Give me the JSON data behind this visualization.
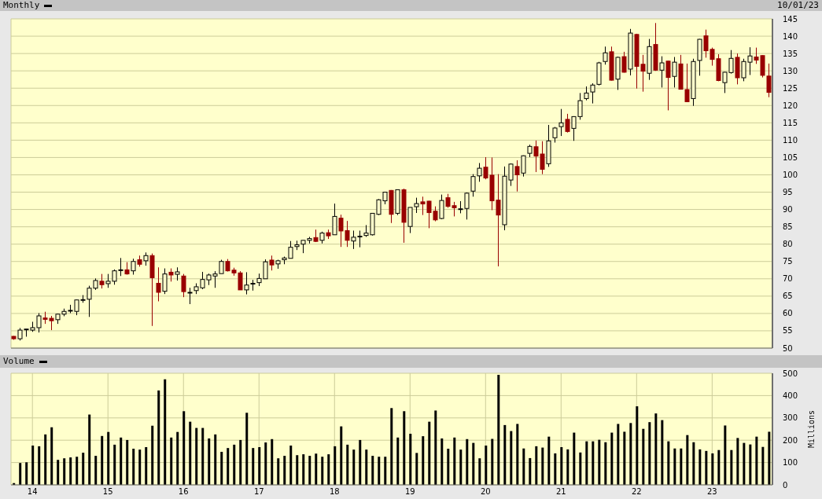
{
  "chart_data": [
    {
      "type": "candlestick",
      "title": "Monthly",
      "annotations": [
        "10/01/23"
      ],
      "x": [
        "2013-10",
        "2013-11",
        "2013-12",
        "2014-01",
        "2014-02",
        "2014-03",
        "2014-04",
        "2014-05",
        "2014-06",
        "2014-07",
        "2014-08",
        "2014-09",
        "2014-10",
        "2014-11",
        "2014-12",
        "2015-01",
        "2015-02",
        "2015-03",
        "2015-04",
        "2015-05",
        "2015-06",
        "2015-07",
        "2015-08",
        "2015-09",
        "2015-10",
        "2015-11",
        "2015-12",
        "2016-01",
        "2016-02",
        "2016-03",
        "2016-04",
        "2016-05",
        "2016-06",
        "2016-07",
        "2016-08",
        "2016-09",
        "2016-10",
        "2016-11",
        "2016-12",
        "2017-01",
        "2017-02",
        "2017-03",
        "2017-04",
        "2017-05",
        "2017-06",
        "2017-07",
        "2017-08",
        "2017-09",
        "2017-10",
        "2017-11",
        "2017-12",
        "2018-01",
        "2018-02",
        "2018-03",
        "2018-04",
        "2018-05",
        "2018-06",
        "2018-07",
        "2018-08",
        "2018-09",
        "2018-10",
        "2018-11",
        "2018-12",
        "2019-01",
        "2019-02",
        "2019-03",
        "2019-04",
        "2019-05",
        "2019-06",
        "2019-07",
        "2019-08",
        "2019-09",
        "2019-10",
        "2019-11",
        "2019-12",
        "2020-01",
        "2020-02",
        "2020-03",
        "2020-04",
        "2020-05",
        "2020-06",
        "2020-07",
        "2020-08",
        "2020-09",
        "2020-10",
        "2020-11",
        "2020-12",
        "2021-01",
        "2021-02",
        "2021-03",
        "2021-04",
        "2021-05",
        "2021-06",
        "2021-07",
        "2021-08",
        "2021-09",
        "2021-10",
        "2021-11",
        "2021-12",
        "2022-01",
        "2022-02",
        "2022-03",
        "2022-04",
        "2022-05",
        "2022-06",
        "2022-07",
        "2022-08",
        "2022-09",
        "2022-10",
        "2022-11",
        "2022-12",
        "2023-01",
        "2023-02",
        "2023-03",
        "2023-04",
        "2023-05",
        "2023-06",
        "2023-07",
        "2023-08",
        "2023-09",
        "2023-10"
      ],
      "ohlc": [
        [
          53.4,
          53.5,
          52.4,
          52.7
        ],
        [
          52.7,
          55.8,
          52.2,
          55.2
        ],
        [
          55.3,
          55.5,
          53.3,
          55.5
        ],
        [
          55.2,
          57.6,
          54.7,
          55.9
        ],
        [
          55.9,
          60.1,
          54.5,
          59.3
        ],
        [
          58.7,
          60.5,
          57.0,
          58.3
        ],
        [
          58.6,
          59.3,
          55.2,
          57.9
        ],
        [
          58.2,
          59.9,
          57.0,
          59.8
        ],
        [
          59.8,
          61.4,
          59.2,
          60.6
        ],
        [
          60.8,
          62.5,
          60.1,
          60.9
        ],
        [
          60.6,
          64.0,
          59.5,
          63.9
        ],
        [
          63.9,
          65.3,
          63.1,
          64.0
        ],
        [
          64.1,
          68.0,
          59.0,
          67.3
        ],
        [
          67.3,
          70.1,
          66.8,
          69.5
        ],
        [
          69.3,
          71.4,
          67.2,
          68.3
        ],
        [
          68.6,
          71.4,
          67.4,
          69.3
        ],
        [
          69.3,
          72.7,
          68.3,
          72.3
        ],
        [
          72.5,
          76.0,
          70.8,
          72.6
        ],
        [
          72.6,
          74.8,
          71.2,
          71.4
        ],
        [
          72.3,
          75.8,
          71.2,
          75.0
        ],
        [
          75.5,
          76.7,
          73.5,
          74.2
        ],
        [
          75.2,
          77.6,
          73.8,
          76.7
        ],
        [
          76.7,
          77.3,
          56.4,
          70.3
        ],
        [
          68.7,
          73.3,
          63.5,
          66.1
        ],
        [
          66.4,
          73.0,
          65.6,
          71.4
        ],
        [
          71.9,
          73.0,
          69.2,
          71.1
        ],
        [
          71.3,
          73.3,
          69.5,
          72.0
        ],
        [
          70.8,
          71.4,
          64.7,
          66.3
        ],
        [
          66.0,
          67.4,
          62.7,
          66.1
        ],
        [
          66.6,
          68.7,
          65.6,
          67.7
        ],
        [
          67.4,
          72.0,
          67.0,
          69.8
        ],
        [
          69.7,
          71.5,
          68.2,
          71.1
        ],
        [
          70.8,
          72.2,
          67.4,
          71.4
        ],
        [
          71.5,
          75.5,
          71.5,
          75.0
        ],
        [
          75.0,
          75.7,
          72.1,
          72.3
        ],
        [
          72.5,
          73.2,
          70.9,
          71.7
        ],
        [
          71.7,
          72.2,
          66.8,
          66.8
        ],
        [
          66.8,
          71.9,
          65.5,
          68.2
        ],
        [
          68.6,
          69.7,
          66.6,
          68.7
        ],
        [
          68.9,
          71.5,
          67.9,
          70.1
        ],
        [
          70.0,
          75.6,
          70.0,
          74.9
        ],
        [
          75.4,
          76.7,
          72.4,
          74.0
        ],
        [
          74.3,
          75.5,
          72.9,
          75.2
        ],
        [
          75.5,
          76.4,
          74.2,
          76.0
        ],
        [
          75.9,
          80.9,
          75.9,
          79.1
        ],
        [
          79.3,
          81.0,
          78.3,
          79.8
        ],
        [
          80.0,
          81.1,
          77.4,
          81.1
        ],
        [
          81.1,
          82.1,
          80.2,
          81.6
        ],
        [
          81.9,
          84.2,
          80.6,
          80.8
        ],
        [
          81.1,
          83.6,
          80.2,
          83.2
        ],
        [
          83.3,
          84.2,
          81.5,
          82.4
        ],
        [
          82.7,
          91.7,
          82.7,
          88.0
        ],
        [
          87.5,
          88.5,
          79.2,
          83.8
        ],
        [
          83.9,
          86.7,
          79.2,
          81.1
        ],
        [
          80.9,
          83.9,
          78.6,
          82.0
        ],
        [
          82.2,
          83.9,
          79.1,
          82.3
        ],
        [
          82.5,
          85.5,
          82.1,
          83.2
        ],
        [
          82.7,
          88.9,
          82.5,
          88.9
        ],
        [
          88.6,
          93.0,
          88.4,
          92.8
        ],
        [
          92.5,
          95.0,
          91.5,
          95.0
        ],
        [
          95.5,
          95.6,
          86.1,
          88.6
        ],
        [
          88.9,
          95.7,
          88.4,
          95.7
        ],
        [
          95.7,
          96.0,
          80.4,
          86.3
        ],
        [
          85.1,
          90.6,
          83.2,
          90.6
        ],
        [
          90.8,
          93.4,
          89.0,
          91.7
        ],
        [
          92.2,
          93.7,
          88.4,
          91.6
        ],
        [
          92.4,
          92.5,
          84.6,
          89.1
        ],
        [
          89.5,
          90.9,
          86.6,
          87.0
        ],
        [
          87.4,
          94.3,
          87.2,
          92.6
        ],
        [
          93.4,
          94.5,
          90.5,
          90.9
        ],
        [
          91.1,
          92.2,
          88.0,
          90.5
        ],
        [
          90.1,
          92.4,
          88.9,
          90.2
        ],
        [
          90.3,
          94.9,
          87.1,
          94.7
        ],
        [
          95.3,
          100.2,
          93.7,
          99.5
        ],
        [
          99.7,
          103.4,
          98.0,
          101.9
        ],
        [
          102.2,
          105.1,
          98.7,
          99.1
        ],
        [
          99.9,
          105.0,
          89.8,
          92.5
        ],
        [
          92.7,
          100.2,
          73.6,
          88.4
        ],
        [
          85.6,
          102.4,
          84.0,
          99.6
        ],
        [
          98.5,
          103.3,
          96.8,
          103.1
        ],
        [
          102.4,
          104.2,
          95.2,
          100.0
        ],
        [
          100.5,
          105.6,
          99.5,
          105.5
        ],
        [
          106.2,
          108.7,
          105.1,
          108.2
        ],
        [
          108.1,
          109.9,
          100.8,
          105.4
        ],
        [
          106.0,
          109.7,
          100.2,
          101.6
        ],
        [
          103.2,
          114.4,
          102.3,
          109.8
        ],
        [
          110.7,
          113.8,
          109.3,
          113.5
        ],
        [
          113.9,
          119.0,
          111.2,
          115.0
        ],
        [
          116.0,
          117.6,
          112.2,
          112.5
        ],
        [
          113.4,
          116.9,
          109.8,
          116.8
        ],
        [
          116.8,
          123.6,
          115.9,
          121.4
        ],
        [
          122.0,
          125.5,
          121.5,
          123.6
        ],
        [
          123.9,
          126.4,
          120.6,
          125.9
        ],
        [
          126.1,
          132.6,
          125.8,
          132.3
        ],
        [
          132.7,
          137.0,
          131.8,
          135.2
        ],
        [
          135.5,
          137.0,
          127.2,
          127.3
        ],
        [
          127.6,
          134.1,
          124.5,
          133.9
        ],
        [
          134.1,
          135.5,
          129.5,
          129.6
        ],
        [
          130.5,
          142.1,
          128.7,
          140.9
        ],
        [
          140.5,
          140.7,
          124.9,
          131.3
        ],
        [
          131.9,
          134.6,
          124.0,
          129.9
        ],
        [
          129.3,
          139.2,
          127.4,
          137.0
        ],
        [
          137.6,
          143.8,
          130.0,
          130.2
        ],
        [
          130.2,
          134.2,
          125.2,
          132.3
        ],
        [
          132.8,
          132.9,
          118.6,
          128.1
        ],
        [
          128.4,
          134.0,
          125.2,
          132.5
        ],
        [
          132.0,
          134.6,
          124.6,
          124.7
        ],
        [
          124.6,
          132.1,
          121.0,
          121.1
        ],
        [
          122.0,
          133.5,
          119.9,
          132.7
        ],
        [
          133.0,
          139.2,
          128.6,
          139.1
        ],
        [
          140.1,
          141.9,
          133.8,
          135.8
        ],
        [
          136.2,
          136.7,
          131.5,
          133.3
        ],
        [
          133.5,
          134.8,
          127.0,
          127.2
        ],
        [
          126.6,
          129.7,
          123.6,
          129.6
        ],
        [
          129.5,
          136.0,
          129.2,
          133.6
        ],
        [
          133.9,
          135.0,
          126.1,
          128.0
        ],
        [
          128.0,
          133.5,
          127.0,
          132.7
        ],
        [
          132.5,
          136.8,
          128.8,
          134.3
        ],
        [
          134.0,
          136.7,
          132.0,
          133.1
        ],
        [
          134.4,
          134.5,
          128.1,
          128.7
        ],
        [
          128.5,
          132.1,
          122.4,
          123.8
        ]
      ],
      "colors": [
        "#990000",
        "#000000",
        "#000000",
        "#000000",
        "#000000",
        "#990000",
        "#990000",
        "#000000",
        "#000000",
        "#000000",
        "#000000",
        "#000000",
        "#000000",
        "#000000",
        "#990000",
        "#000000",
        "#000000",
        "#000000",
        "#990000",
        "#000000",
        "#990000",
        "#000000",
        "#990000",
        "#990000",
        "#000000",
        "#990000",
        "#000000",
        "#990000",
        "#000000",
        "#000000",
        "#000000",
        "#000000",
        "#000000",
        "#000000",
        "#990000",
        "#990000",
        "#990000",
        "#000000",
        "#000000",
        "#000000",
        "#000000",
        "#990000",
        "#000000",
        "#000000",
        "#000000",
        "#000000",
        "#000000",
        "#000000",
        "#990000",
        "#000000",
        "#990000",
        "#000000",
        "#990000",
        "#990000",
        "#000000",
        "#000000",
        "#000000",
        "#000000",
        "#000000",
        "#000000",
        "#990000",
        "#000000",
        "#990000",
        "#000000",
        "#000000",
        "#990000",
        "#990000",
        "#990000",
        "#000000",
        "#990000",
        "#990000",
        "#000000",
        "#000000",
        "#000000",
        "#000000",
        "#990000",
        "#990000",
        "#990000",
        "#000000",
        "#000000",
        "#990000",
        "#000000",
        "#000000",
        "#990000",
        "#990000",
        "#000000",
        "#000000",
        "#000000",
        "#990000",
        "#000000",
        "#000000",
        "#000000",
        "#000000",
        "#000000",
        "#000000",
        "#990000",
        "#000000",
        "#990000",
        "#000000",
        "#990000",
        "#990000",
        "#000000",
        "#990000",
        "#000000",
        "#990000",
        "#000000",
        "#990000",
        "#990000",
        "#000000",
        "#000000",
        "#990000",
        "#990000",
        "#990000",
        "#000000",
        "#000000",
        "#990000",
        "#000000",
        "#000000",
        "#990000",
        "#990000",
        "#990000"
      ],
      "xlim": [
        "2013-09-19",
        "2023-10-19"
      ],
      "xticks": [
        {
          "value": "2014-01",
          "label": null
        },
        {
          "value": "2015-01",
          "label": null
        },
        {
          "value": "2016-01",
          "label": null
        },
        {
          "value": "2017-01",
          "label": null
        },
        {
          "value": "2018-01",
          "label": null
        },
        {
          "value": "2019-01",
          "label": null
        },
        {
          "value": "2020-01",
          "label": null
        },
        {
          "value": "2021-01",
          "label": null
        },
        {
          "value": "2022-01",
          "label": null
        },
        {
          "value": "2023-01",
          "label": null
        }
      ],
      "ylim": [
        50,
        145
      ],
      "yticks": [
        50,
        55,
        60,
        65,
        70,
        75,
        80,
        85,
        90,
        95,
        100,
        105,
        110,
        115,
        120,
        125,
        130,
        135,
        140,
        145
      ],
      "grid": true,
      "tick_labels": "y"
    },
    {
      "type": "bar",
      "title": "Volume",
      "ylabel": "Millions",
      "x": [
        "2013-10",
        "2013-11",
        "2013-12",
        "2014-01",
        "2014-02",
        "2014-03",
        "2014-04",
        "2014-05",
        "2014-06",
        "2014-07",
        "2014-08",
        "2014-09",
        "2014-10",
        "2014-11",
        "2014-12",
        "2015-01",
        "2015-02",
        "2015-03",
        "2015-04",
        "2015-05",
        "2015-06",
        "2015-07",
        "2015-08",
        "2015-09",
        "2015-10",
        "2015-11",
        "2015-12",
        "2016-01",
        "2016-02",
        "2016-03",
        "2016-04",
        "2016-05",
        "2016-06",
        "2016-07",
        "2016-08",
        "2016-09",
        "2016-10",
        "2016-11",
        "2016-12",
        "2017-01",
        "2017-02",
        "2017-03",
        "2017-04",
        "2017-05",
        "2017-06",
        "2017-07",
        "2017-08",
        "2017-09",
        "2017-10",
        "2017-11",
        "2017-12",
        "2018-01",
        "2018-02",
        "2018-03",
        "2018-04",
        "2018-05",
        "2018-06",
        "2018-07",
        "2018-08",
        "2018-09",
        "2018-10",
        "2018-11",
        "2018-12",
        "2019-01",
        "2019-02",
        "2019-03",
        "2019-04",
        "2019-05",
        "2019-06",
        "2019-07",
        "2019-08",
        "2019-09",
        "2019-10",
        "2019-11",
        "2019-12",
        "2020-01",
        "2020-02",
        "2020-03",
        "2020-04",
        "2020-05",
        "2020-06",
        "2020-07",
        "2020-08",
        "2020-09",
        "2020-10",
        "2020-11",
        "2020-12",
        "2021-01",
        "2021-02",
        "2021-03",
        "2021-04",
        "2021-05",
        "2021-06",
        "2021-07",
        "2021-08",
        "2021-09",
        "2021-10",
        "2021-11",
        "2021-12",
        "2022-01",
        "2022-02",
        "2022-03",
        "2022-04",
        "2022-05",
        "2022-06",
        "2022-07",
        "2022-08",
        "2022-09",
        "2022-10",
        "2022-11",
        "2022-12",
        "2023-01",
        "2023-02",
        "2023-03",
        "2023-04",
        "2023-05",
        "2023-06",
        "2023-07",
        "2023-08",
        "2023-09",
        "2023-10"
      ],
      "values": [
        8,
        98,
        101,
        176,
        173,
        226,
        258,
        112,
        119,
        123,
        126,
        144,
        315,
        130,
        219,
        237,
        180,
        212,
        201,
        162,
        158,
        169,
        265,
        423,
        473,
        212,
        237,
        330,
        283,
        255,
        255,
        208,
        226,
        148,
        165,
        180,
        201,
        323,
        165,
        169,
        190,
        205,
        119,
        130,
        176,
        133,
        137,
        130,
        140,
        126,
        137,
        173,
        262,
        180,
        158,
        201,
        158,
        130,
        126,
        126,
        344,
        212,
        330,
        229,
        143,
        218,
        283,
        333,
        208,
        162,
        212,
        158,
        205,
        188,
        119,
        176,
        206,
        493,
        268,
        241,
        273,
        163,
        120,
        173,
        167,
        216,
        141,
        169,
        159,
        234,
        145,
        195,
        195,
        202,
        191,
        234,
        273,
        238,
        277,
        352,
        251,
        281,
        320,
        290,
        195,
        163,
        163,
        223,
        191,
        159,
        152,
        141,
        156,
        266,
        156,
        210,
        188,
        181,
        216,
        170,
        238
      ],
      "color": "#000000",
      "xlim": [
        "2013-09-19",
        "2023-10-19"
      ],
      "xticks": [
        {
          "value": "2014-01",
          "label": "14"
        },
        {
          "value": "2015-01",
          "label": "15"
        },
        {
          "value": "2016-01",
          "label": "16"
        },
        {
          "value": "2017-01",
          "label": "17"
        },
        {
          "value": "2018-01",
          "label": "18"
        },
        {
          "value": "2019-01",
          "label": "19"
        },
        {
          "value": "2020-01",
          "label": "20"
        },
        {
          "value": "2021-01",
          "label": "21"
        },
        {
          "value": "2022-01",
          "label": "22"
        },
        {
          "value": "2023-01",
          "label": "23"
        }
      ],
      "ylim": [
        0,
        500
      ],
      "yticks": [
        0,
        100,
        200,
        300,
        400,
        500
      ],
      "grid": true
    }
  ]
}
